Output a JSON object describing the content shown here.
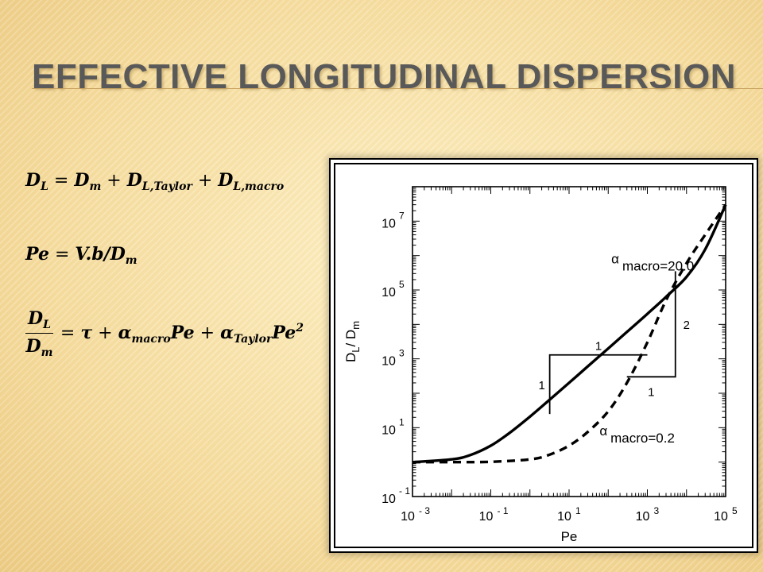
{
  "slide": {
    "title": "Effective Longitudinal Dispersion"
  },
  "equations": {
    "eq1": {
      "lhs": "D",
      "lhs_sub": "L",
      "t1": "D",
      "t1_sub": "m",
      "t2": "D",
      "t2_sub": "L,Taylor",
      "t3": "D",
      "t3_sub": "L,macro",
      "eq": "=",
      "plus": "+"
    },
    "eq2": {
      "lhs": "Pe",
      "eq": "=",
      "rhs": "V.b/D",
      "rhs_sub": "m"
    },
    "eq3": {
      "num": "D",
      "num_sub": "L",
      "den": "D",
      "den_sub": "m",
      "eq": "=",
      "tau": "τ",
      "plus": "+",
      "a1": "α",
      "a1_sub": "macro",
      "pe1": "Pe",
      "a2": "α",
      "a2_sub": "Taylor",
      "pe2": "Pe",
      "pe2_sup": "2"
    }
  },
  "chart_data": {
    "type": "line",
    "xscale": "log",
    "yscale": "log",
    "xlabel": "Pe",
    "ylabel_main": "D",
    "ylabel_sub1": "L",
    "ylabel_sep": "/ D",
    "ylabel_sub2": "m",
    "xlim": [
      0.001,
      100000
    ],
    "ylim": [
      0.1,
      100000000
    ],
    "x_ticks": [
      {
        "value": 0.001,
        "base": "10",
        "exp": "- 3"
      },
      {
        "value": 0.1,
        "base": "10",
        "exp": "- 1"
      },
      {
        "value": 10,
        "base": "10",
        "exp": "1"
      },
      {
        "value": 1000,
        "base": "10",
        "exp": "3"
      },
      {
        "value": 100000,
        "base": "10",
        "exp": "5"
      }
    ],
    "y_ticks": [
      {
        "value": 0.1,
        "base": "10",
        "exp": "- 1"
      },
      {
        "value": 10,
        "base": "10",
        "exp": "1"
      },
      {
        "value": 1000,
        "base": "10",
        "exp": "3"
      },
      {
        "value": 100000,
        "base": "10",
        "exp": "5"
      },
      {
        "value": 10000000,
        "base": "10",
        "exp": "7"
      }
    ],
    "series": [
      {
        "label_alpha": "α",
        "label_sub": "macro",
        "label_value": "=20.0",
        "style": "solid",
        "x": [
          0.001,
          0.01,
          0.03,
          0.1,
          0.3,
          1,
          3,
          10,
          30,
          100,
          300,
          1000,
          3000,
          10000,
          30000,
          100000
        ],
        "y": [
          1,
          1.2,
          1.6,
          3,
          7,
          21,
          61,
          201,
          601,
          2001,
          6020,
          20200,
          63000,
          240000,
          1500000,
          30000000
        ]
      },
      {
        "label_alpha": "α",
        "label_sub": "macro",
        "label_value": "=0.2",
        "style": "dashed",
        "x": [
          0.001,
          0.01,
          0.1,
          1,
          3,
          10,
          30,
          100,
          300,
          1000,
          3000,
          10000,
          30000,
          100000
        ],
        "y": [
          1,
          1,
          1.02,
          1.2,
          1.6,
          3,
          7.5,
          30,
          200,
          3000,
          50000,
          600000,
          4000000,
          30000000
        ]
      }
    ],
    "slope_triangles": [
      {
        "horizontal_label": "1",
        "vertical_label": "1"
      },
      {
        "horizontal_label": "1",
        "vertical_label": "2"
      }
    ]
  }
}
